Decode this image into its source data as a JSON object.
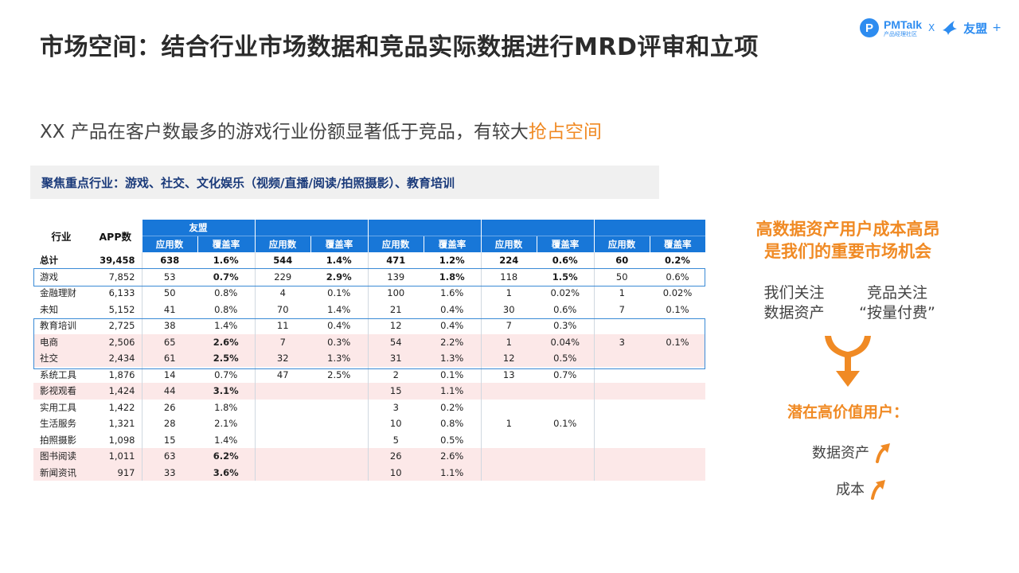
{
  "title": "市场空间：结合行业市场数据和竞品实际数据进行MRD评审和立项",
  "logo": {
    "pm_initial": "P",
    "pm_brand": "PMTalk",
    "pm_tagline": "产品经理社区",
    "separator": "X",
    "umeng": "友盟",
    "plus": "+"
  },
  "subtitle": {
    "prefix": "XX 产品在客户数最多的游戏行业份额显著低于竞品，有较大",
    "highlight": "抢占空间"
  },
  "focus_bar": "聚焦重点行业：游戏、社交、文化娱乐（视频/直播/阅读/拍照摄影）、教育培训",
  "table": {
    "headers": {
      "industry": "行业",
      "app_count": "APP数",
      "groups": [
        "友盟",
        "",
        "",
        "",
        ""
      ],
      "sub": [
        "应用数",
        "覆盖率"
      ]
    },
    "rows": [
      {
        "industry": "总计",
        "apps": "39,458",
        "style": "total",
        "cells": [
          "638",
          "1.6%",
          "544",
          "1.4%",
          "471",
          "1.2%",
          "224",
          "0.6%",
          "60",
          "0.2%"
        ],
        "marks": [
          "",
          "",
          "",
          "",
          "",
          "",
          "",
          "",
          "",
          ""
        ]
      },
      {
        "industry": "游戏",
        "apps": "7,852",
        "style": "",
        "cells": [
          "53",
          "0.7%",
          "229",
          "2.9%",
          "139",
          "1.8%",
          "118",
          "1.5%",
          "50",
          "0.6%"
        ],
        "marks": [
          "",
          "green",
          "",
          "red",
          "",
          "red",
          "",
          "red",
          "",
          ""
        ]
      },
      {
        "industry": "金融理财",
        "apps": "6,133",
        "style": "",
        "cells": [
          "50",
          "0.8%",
          "4",
          "0.1%",
          "100",
          "1.6%",
          "1",
          "0.02%",
          "1",
          "0.02%"
        ],
        "marks": [
          "",
          "",
          "",
          "",
          "",
          "",
          "",
          "",
          "",
          ""
        ]
      },
      {
        "industry": "未知",
        "apps": "5,152",
        "style": "",
        "cells": [
          "41",
          "0.8%",
          "70",
          "1.4%",
          "21",
          "0.4%",
          "30",
          "0.6%",
          "7",
          "0.1%"
        ],
        "marks": [
          "",
          "",
          "",
          "",
          "",
          "",
          "",
          "",
          "",
          ""
        ]
      },
      {
        "industry": "教育培训",
        "apps": "2,725",
        "style": "",
        "cells": [
          "38",
          "1.4%",
          "11",
          "0.4%",
          "12",
          "0.4%",
          "7",
          "0.3%",
          "",
          ""
        ],
        "marks": [
          "",
          "",
          "",
          "",
          "",
          "",
          "",
          "",
          "",
          ""
        ]
      },
      {
        "industry": "电商",
        "apps": "2,506",
        "style": "pink",
        "cells": [
          "65",
          "2.6%",
          "7",
          "0.3%",
          "54",
          "2.2%",
          "1",
          "0.04%",
          "3",
          "0.1%"
        ],
        "marks": [
          "",
          "red",
          "",
          "",
          "",
          "",
          "",
          "",
          "",
          ""
        ]
      },
      {
        "industry": "社交",
        "apps": "2,434",
        "style": "pink",
        "cells": [
          "61",
          "2.5%",
          "32",
          "1.3%",
          "31",
          "1.3%",
          "12",
          "0.5%",
          "",
          ""
        ],
        "marks": [
          "",
          "red",
          "",
          "",
          "",
          "",
          "",
          "",
          "",
          ""
        ]
      },
      {
        "industry": "系统工具",
        "apps": "1,876",
        "style": "",
        "cells": [
          "14",
          "0.7%",
          "47",
          "2.5%",
          "2",
          "0.1%",
          "13",
          "0.7%",
          "",
          ""
        ],
        "marks": [
          "",
          "",
          "",
          "",
          "",
          "",
          "",
          "",
          "",
          ""
        ]
      },
      {
        "industry": "影视观看",
        "apps": "1,424",
        "style": "pink",
        "cells": [
          "44",
          "3.1%",
          "",
          "",
          "15",
          "1.1%",
          "",
          "",
          "",
          ""
        ],
        "marks": [
          "",
          "red",
          "",
          "",
          "",
          "",
          "",
          "",
          "",
          ""
        ]
      },
      {
        "industry": "实用工具",
        "apps": "1,422",
        "style": "",
        "cells": [
          "26",
          "1.8%",
          "",
          "",
          "3",
          "0.2%",
          "",
          "",
          "",
          ""
        ],
        "marks": [
          "",
          "",
          "",
          "",
          "",
          "",
          "",
          "",
          "",
          ""
        ]
      },
      {
        "industry": "生活服务",
        "apps": "1,321",
        "style": "",
        "cells": [
          "28",
          "2.1%",
          "",
          "",
          "10",
          "0.8%",
          "1",
          "0.1%",
          "",
          ""
        ],
        "marks": [
          "",
          "",
          "",
          "",
          "",
          "",
          "",
          "",
          "",
          ""
        ]
      },
      {
        "industry": "拍照摄影",
        "apps": "1,098",
        "style": "",
        "cells": [
          "15",
          "1.4%",
          "",
          "",
          "5",
          "0.5%",
          "",
          "",
          "",
          ""
        ],
        "marks": [
          "",
          "",
          "",
          "",
          "",
          "",
          "",
          "",
          "",
          ""
        ]
      },
      {
        "industry": "图书阅读",
        "apps": "1,011",
        "style": "pink",
        "cells": [
          "63",
          "6.2%",
          "",
          "",
          "26",
          "2.6%",
          "",
          "",
          "",
          ""
        ],
        "marks": [
          "",
          "red",
          "",
          "",
          "",
          "",
          "",
          "",
          "",
          ""
        ]
      },
      {
        "industry": "新闻资讯",
        "apps": "917",
        "style": "pink",
        "cells": [
          "33",
          "3.6%",
          "",
          "",
          "10",
          "1.1%",
          "",
          "",
          "",
          ""
        ],
        "marks": [
          "",
          "red",
          "",
          "",
          "",
          "",
          "",
          "",
          "",
          ""
        ]
      }
    ]
  },
  "right_panel": {
    "headline_1": "高数据资产用户成本高昂",
    "headline_2": "是我们的重要市场机会",
    "our_focus_1": "我们关注",
    "our_focus_2": "数据资产",
    "rival_focus_1": "竞品关注",
    "rival_focus_2": "“按量付费”",
    "potential": "潜在高价值用户：",
    "item_1": "数据资产",
    "item_2": "成本"
  },
  "colors": {
    "accent_orange": "#f08a24",
    "header_blue": "#1877d8",
    "highlight_red": "#e03a3a",
    "highlight_green": "#3aa040",
    "row_pink": "#fce8e8"
  }
}
